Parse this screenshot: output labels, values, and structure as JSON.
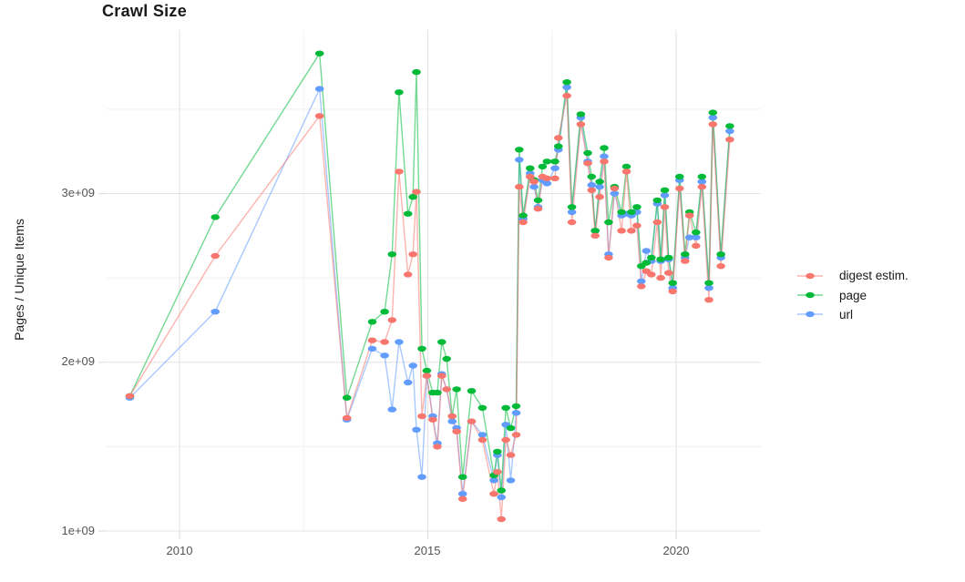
{
  "title": "Crawl Size",
  "y_axis": {
    "label": "Pages / Unique Items",
    "ticks": [
      {
        "label": "1e+09",
        "value": 1
      },
      {
        "label": "2e+09",
        "value": 2
      },
      {
        "label": "3e+09",
        "value": 3
      }
    ]
  },
  "x_axis": {
    "ticks": [
      {
        "label": "2010",
        "value": 2010
      },
      {
        "label": "2015",
        "value": 2015
      },
      {
        "label": "2020",
        "value": 2020
      }
    ]
  },
  "legend": {
    "items": [
      {
        "label": "digest estim.",
        "color": "#F8766D"
      },
      {
        "label": "page",
        "color": "#00BA38"
      },
      {
        "label": "url",
        "color": "#619CFF"
      }
    ]
  },
  "chart_data": {
    "type": "line",
    "title": "Crawl Size",
    "xlabel": "",
    "ylabel": "Pages / Unique Items",
    "x_unit": "year (decimal, one point per crawl)",
    "y_unit": "pages / unique items, value ×1e9",
    "xlim": [
      2008.53,
      2021.71
    ],
    "ylim_e9": [
      1.0,
      3.97
    ],
    "legend_position": "right",
    "grid": {
      "x_major": [
        2010,
        2015,
        2020
      ],
      "x_minor": [
        2012.5,
        2017.5
      ],
      "y_major": [
        1,
        2,
        3
      ],
      "y_minor": [
        1.5,
        2.5,
        3.5
      ],
      "major_color": "#E4E4E4",
      "minor_color": "#F0F0F0",
      "tick_color": "#DCDCDC"
    },
    "series": [
      {
        "name": "digest estim.",
        "color": "#F8766D",
        "points": [
          [
            2009.0,
            1.8
          ],
          [
            2010.72,
            2.63
          ],
          [
            2012.82,
            3.46
          ],
          [
            2013.37,
            1.67
          ],
          [
            2013.88,
            2.13
          ],
          [
            2014.13,
            2.12
          ],
          [
            2014.28,
            2.25
          ],
          [
            2014.42,
            3.13
          ],
          [
            2014.6,
            2.52
          ],
          [
            2014.7,
            2.64
          ],
          [
            2014.77,
            3.01
          ],
          [
            2014.88,
            1.68
          ],
          [
            2014.98,
            1.92
          ],
          [
            2015.1,
            1.66
          ],
          [
            2015.19,
            1.5
          ],
          [
            2015.28,
            1.92
          ],
          [
            2015.38,
            1.84
          ],
          [
            2015.49,
            1.68
          ],
          [
            2015.58,
            1.59
          ],
          [
            2015.7,
            1.19
          ],
          [
            2015.88,
            1.65
          ],
          [
            2016.1,
            1.54
          ],
          [
            2016.33,
            1.22
          ],
          [
            2016.4,
            1.35
          ],
          [
            2016.48,
            1.07
          ],
          [
            2016.57,
            1.54
          ],
          [
            2016.67,
            1.45
          ],
          [
            2016.78,
            1.57
          ],
          [
            2016.84,
            3.04
          ],
          [
            2016.92,
            2.83
          ],
          [
            2017.06,
            3.1
          ],
          [
            2017.14,
            3.07
          ],
          [
            2017.22,
            2.91
          ],
          [
            2017.31,
            3.1
          ],
          [
            2017.4,
            3.09
          ],
          [
            2017.56,
            3.09
          ],
          [
            2017.63,
            3.33
          ],
          [
            2017.8,
            3.58
          ],
          [
            2017.9,
            2.83
          ],
          [
            2018.08,
            3.41
          ],
          [
            2018.22,
            3.18
          ],
          [
            2018.3,
            3.02
          ],
          [
            2018.37,
            2.75
          ],
          [
            2018.46,
            2.98
          ],
          [
            2018.55,
            3.19
          ],
          [
            2018.64,
            2.62
          ],
          [
            2018.76,
            3.03
          ],
          [
            2018.9,
            2.78
          ],
          [
            2019.0,
            3.13
          ],
          [
            2019.1,
            2.78
          ],
          [
            2019.21,
            2.81
          ],
          [
            2019.3,
            2.45
          ],
          [
            2019.4,
            2.54
          ],
          [
            2019.5,
            2.52
          ],
          [
            2019.62,
            2.83
          ],
          [
            2019.69,
            2.5
          ],
          [
            2019.77,
            2.92
          ],
          [
            2019.85,
            2.53
          ],
          [
            2019.93,
            2.42
          ],
          [
            2020.07,
            3.03
          ],
          [
            2020.18,
            2.6
          ],
          [
            2020.27,
            2.87
          ],
          [
            2020.4,
            2.69
          ],
          [
            2020.52,
            3.04
          ],
          [
            2020.66,
            2.37
          ],
          [
            2020.74,
            3.41
          ],
          [
            2020.9,
            2.57
          ],
          [
            2021.08,
            3.32
          ]
        ]
      },
      {
        "name": "page",
        "color": "#00BA38",
        "points": [
          [
            2009.0,
            1.8
          ],
          [
            2010.72,
            2.86
          ],
          [
            2012.82,
            3.83
          ],
          [
            2013.37,
            1.79
          ],
          [
            2013.88,
            2.24
          ],
          [
            2014.13,
            2.3
          ],
          [
            2014.28,
            2.64
          ],
          [
            2014.42,
            3.6
          ],
          [
            2014.6,
            2.88
          ],
          [
            2014.7,
            2.98
          ],
          [
            2014.77,
            3.72
          ],
          [
            2014.88,
            2.08
          ],
          [
            2014.98,
            1.95
          ],
          [
            2015.1,
            1.82
          ],
          [
            2015.19,
            1.82
          ],
          [
            2015.28,
            2.12
          ],
          [
            2015.38,
            2.02
          ],
          [
            2015.49,
            1.68
          ],
          [
            2015.58,
            1.84
          ],
          [
            2015.7,
            1.32
          ],
          [
            2015.88,
            1.83
          ],
          [
            2016.1,
            1.73
          ],
          [
            2016.33,
            1.33
          ],
          [
            2016.4,
            1.47
          ],
          [
            2016.48,
            1.24
          ],
          [
            2016.57,
            1.73
          ],
          [
            2016.67,
            1.61
          ],
          [
            2016.78,
            1.74
          ],
          [
            2016.84,
            3.26
          ],
          [
            2016.92,
            2.87
          ],
          [
            2017.06,
            3.15
          ],
          [
            2017.14,
            3.08
          ],
          [
            2017.22,
            2.96
          ],
          [
            2017.31,
            3.16
          ],
          [
            2017.4,
            3.19
          ],
          [
            2017.56,
            3.19
          ],
          [
            2017.63,
            3.28
          ],
          [
            2017.8,
            3.66
          ],
          [
            2017.9,
            2.92
          ],
          [
            2018.08,
            3.47
          ],
          [
            2018.22,
            3.24
          ],
          [
            2018.3,
            3.1
          ],
          [
            2018.37,
            2.78
          ],
          [
            2018.46,
            3.07
          ],
          [
            2018.55,
            3.27
          ],
          [
            2018.64,
            2.83
          ],
          [
            2018.76,
            3.04
          ],
          [
            2018.9,
            2.89
          ],
          [
            2019.0,
            3.16
          ],
          [
            2019.1,
            2.89
          ],
          [
            2019.21,
            2.92
          ],
          [
            2019.3,
            2.57
          ],
          [
            2019.4,
            2.59
          ],
          [
            2019.5,
            2.62
          ],
          [
            2019.62,
            2.96
          ],
          [
            2019.69,
            2.61
          ],
          [
            2019.77,
            3.02
          ],
          [
            2019.85,
            2.62
          ],
          [
            2019.93,
            2.47
          ],
          [
            2020.07,
            3.1
          ],
          [
            2020.18,
            2.64
          ],
          [
            2020.27,
            2.89
          ],
          [
            2020.4,
            2.77
          ],
          [
            2020.52,
            3.1
          ],
          [
            2020.66,
            2.47
          ],
          [
            2020.74,
            3.48
          ],
          [
            2020.9,
            2.64
          ],
          [
            2021.08,
            3.4
          ]
        ]
      },
      {
        "name": "url",
        "color": "#619CFF",
        "points": [
          [
            2009.0,
            1.79
          ],
          [
            2010.72,
            2.3
          ],
          [
            2012.82,
            3.62
          ],
          [
            2013.37,
            1.66
          ],
          [
            2013.88,
            2.08
          ],
          [
            2014.13,
            2.04
          ],
          [
            2014.28,
            1.72
          ],
          [
            2014.42,
            2.12
          ],
          [
            2014.6,
            1.88
          ],
          [
            2014.7,
            1.98
          ],
          [
            2014.77,
            1.6
          ],
          [
            2014.88,
            1.32
          ],
          [
            2014.98,
            1.92
          ],
          [
            2015.1,
            1.68
          ],
          [
            2015.19,
            1.52
          ],
          [
            2015.28,
            1.93
          ],
          [
            2015.38,
            1.84
          ],
          [
            2015.49,
            1.65
          ],
          [
            2015.58,
            1.61
          ],
          [
            2015.7,
            1.22
          ],
          [
            2015.88,
            1.65
          ],
          [
            2016.1,
            1.57
          ],
          [
            2016.33,
            1.3
          ],
          [
            2016.4,
            1.45
          ],
          [
            2016.48,
            1.2
          ],
          [
            2016.57,
            1.63
          ],
          [
            2016.67,
            1.3
          ],
          [
            2016.78,
            1.7
          ],
          [
            2016.84,
            3.2
          ],
          [
            2016.92,
            2.85
          ],
          [
            2017.06,
            3.12
          ],
          [
            2017.14,
            3.04
          ],
          [
            2017.22,
            2.92
          ],
          [
            2017.31,
            3.08
          ],
          [
            2017.4,
            3.06
          ],
          [
            2017.56,
            3.15
          ],
          [
            2017.63,
            3.26
          ],
          [
            2017.8,
            3.63
          ],
          [
            2017.9,
            2.89
          ],
          [
            2018.08,
            3.45
          ],
          [
            2018.22,
            3.19
          ],
          [
            2018.3,
            3.05
          ],
          [
            2018.37,
            2.78
          ],
          [
            2018.46,
            3.04
          ],
          [
            2018.55,
            3.22
          ],
          [
            2018.64,
            2.64
          ],
          [
            2018.76,
            3.0
          ],
          [
            2018.9,
            2.87
          ],
          [
            2019.0,
            2.88
          ],
          [
            2019.1,
            2.87
          ],
          [
            2019.21,
            2.89
          ],
          [
            2019.3,
            2.48
          ],
          [
            2019.4,
            2.66
          ],
          [
            2019.5,
            2.6
          ],
          [
            2019.62,
            2.94
          ],
          [
            2019.69,
            2.6
          ],
          [
            2019.77,
            2.99
          ],
          [
            2019.85,
            2.61
          ],
          [
            2019.93,
            2.44
          ],
          [
            2020.07,
            3.08
          ],
          [
            2020.18,
            2.62
          ],
          [
            2020.27,
            2.74
          ],
          [
            2020.4,
            2.74
          ],
          [
            2020.52,
            3.07
          ],
          [
            2020.66,
            2.44
          ],
          [
            2020.74,
            3.45
          ],
          [
            2020.9,
            2.62
          ],
          [
            2021.08,
            3.37
          ]
        ]
      }
    ]
  }
}
